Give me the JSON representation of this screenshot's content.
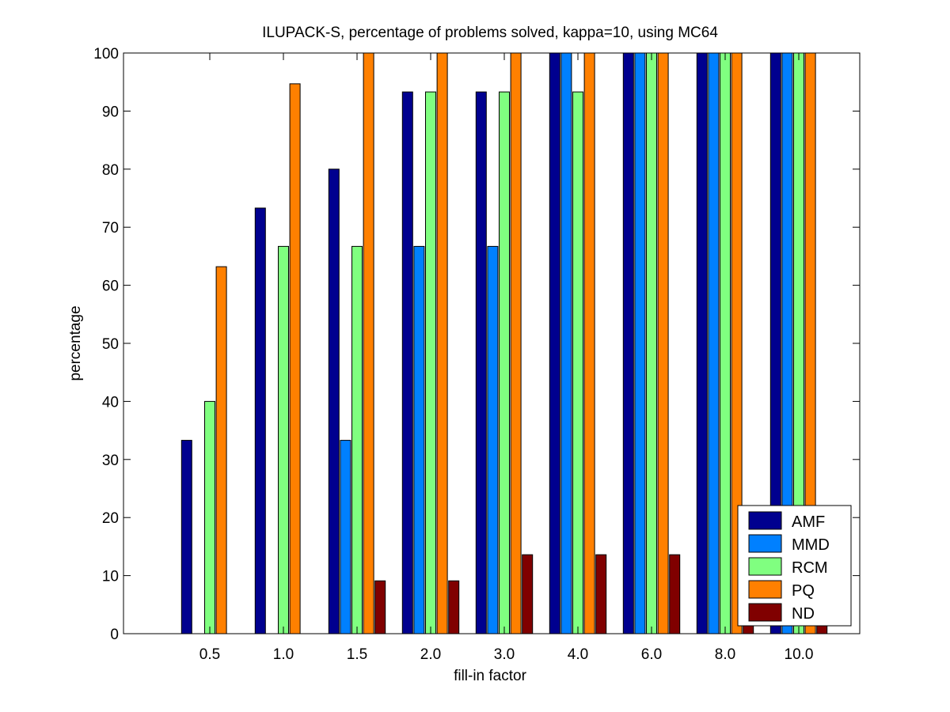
{
  "chart_data": {
    "type": "bar",
    "title": "ILUPACK-S, percentage of problems solved, kappa=10, using MC64",
    "xlabel": "fill-in factor",
    "ylabel": "percentage",
    "ylim": [
      0,
      100
    ],
    "yticks": [
      0,
      10,
      20,
      30,
      40,
      50,
      60,
      70,
      80,
      90,
      100
    ],
    "grid": false,
    "legend_position": "bottom-right",
    "categories": [
      "0.5",
      "1.0",
      "1.5",
      "2.0",
      "3.0",
      "4.0",
      "6.0",
      "8.0",
      "10.0"
    ],
    "series": [
      {
        "name": "AMF",
        "color": "#00008f",
        "values": [
          33.3,
          73.3,
          80,
          93.3,
          93.3,
          100,
          100,
          100,
          100
        ]
      },
      {
        "name": "MMD",
        "color": "#0080ff",
        "values": [
          0,
          0,
          33.3,
          66.7,
          66.7,
          100,
          100,
          100,
          100
        ]
      },
      {
        "name": "RCM",
        "color": "#80ff80",
        "values": [
          40,
          66.7,
          66.7,
          93.3,
          93.3,
          93.3,
          100,
          100,
          100
        ]
      },
      {
        "name": "PQ",
        "color": "#ff8000",
        "values": [
          63.2,
          94.7,
          100,
          100,
          100,
          100,
          100,
          100,
          100
        ]
      },
      {
        "name": "ND",
        "color": "#800000",
        "values": [
          0,
          0,
          9.1,
          9.1,
          13.6,
          13.6,
          13.6,
          13.6,
          13.6
        ]
      }
    ]
  }
}
